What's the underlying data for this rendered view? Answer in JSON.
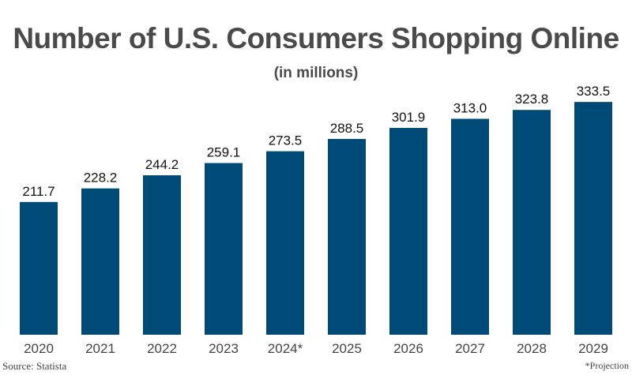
{
  "chart_data": {
    "type": "bar",
    "title": "Number of U.S. Consumers Shopping Online",
    "subtitle": "(in millions)",
    "categories": [
      "2020",
      "2021",
      "2022",
      "2023",
      "2024*",
      "2025",
      "2026",
      "2027",
      "2028",
      "2029"
    ],
    "values": [
      211.7,
      228.2,
      244.2,
      259.1,
      273.5,
      288.5,
      301.9,
      313.0,
      323.8,
      333.5
    ],
    "value_labels": [
      "211.7",
      "228.2",
      "244.2",
      "259.1",
      "273.5",
      "288.5",
      "301.9",
      "313.0",
      "323.8",
      "333.5"
    ],
    "ylim": [
      50,
      350
    ],
    "grid": false,
    "bar_color": "#004a77"
  },
  "source": "Source: Statista",
  "note": "*Projection"
}
